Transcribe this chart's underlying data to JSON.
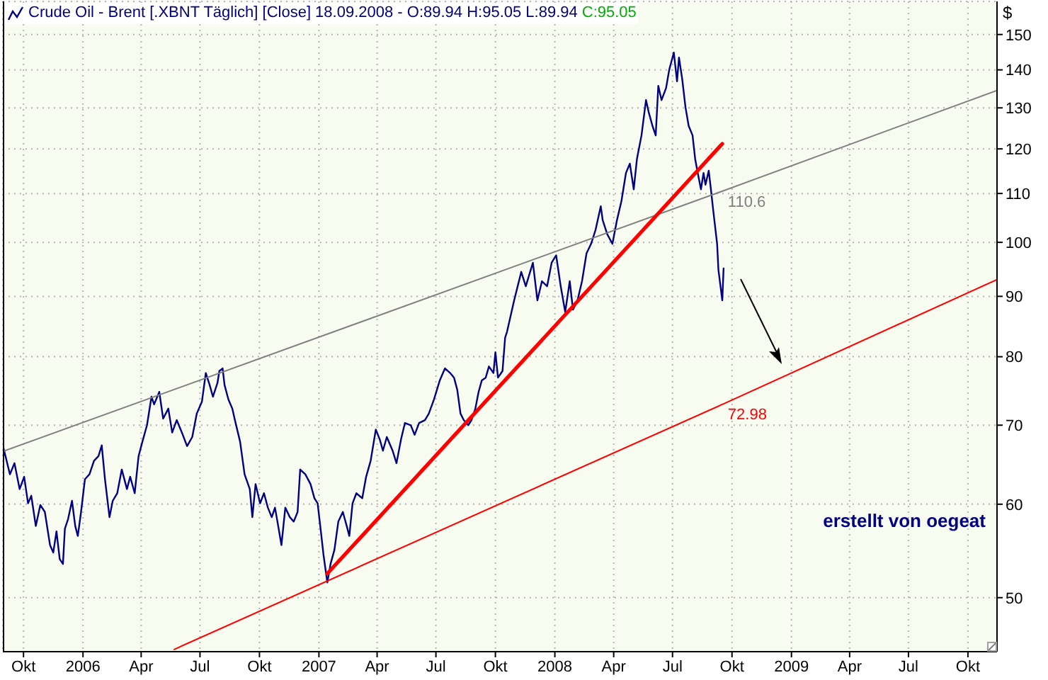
{
  "chart_data": {
    "type": "line",
    "title": "Crude Oil - Brent [.XBNT Täglich] [Close] 18.09.2008 - O:89.94 H:95.05 L:89.94",
    "ylabel": "$",
    "annotations": [
      "C:95.05",
      "erstellt von oegeat"
    ],
    "xlim": [
      "2005-08-30",
      "2009-11-15"
    ],
    "xticks": [
      {
        "value": "2005-10-01",
        "label": "Okt"
      },
      {
        "value": "2006-01-01",
        "label": "2006"
      },
      {
        "value": "2006-04-01",
        "label": "Apr"
      },
      {
        "value": "2006-07-01",
        "label": "Jul"
      },
      {
        "value": "2006-10-01",
        "label": "Okt"
      },
      {
        "value": "2007-01-01",
        "label": "2007"
      },
      {
        "value": "2007-04-01",
        "label": "Apr"
      },
      {
        "value": "2007-07-01",
        "label": "Jul"
      },
      {
        "value": "2007-10-01",
        "label": "Okt"
      },
      {
        "value": "2008-01-01",
        "label": "2008"
      },
      {
        "value": "2008-04-01",
        "label": "Apr"
      },
      {
        "value": "2008-07-01",
        "label": "Jul"
      },
      {
        "value": "2008-10-01",
        "label": "Okt"
      },
      {
        "value": "2009-01-01",
        "label": "2009"
      },
      {
        "value": "2009-04-01",
        "label": "Apr"
      },
      {
        "value": "2009-07-01",
        "label": "Jul"
      },
      {
        "value": "2009-10-01",
        "label": "Okt"
      }
    ],
    "ylim": [
      45,
      160
    ],
    "yticks": [
      50,
      60,
      70,
      80,
      90,
      100,
      110,
      120,
      130,
      140,
      150
    ],
    "log": true,
    "grid": true,
    "series": [
      {
        "color": "#000080",
        "x": [
          "2005-08-30",
          "2005-09-10",
          "2005-09-17",
          "2005-09-25",
          "2005-10-02",
          "2005-10-08",
          "2005-10-13",
          "2005-10-20",
          "2005-10-27",
          "2005-11-03",
          "2005-11-11",
          "2005-11-16",
          "2005-11-21",
          "2005-11-26",
          "2005-12-01",
          "2005-12-04",
          "2005-12-09",
          "2005-12-15",
          "2005-12-20",
          "2005-12-24",
          "2005-12-29",
          "2006-01-04",
          "2006-01-11",
          "2006-01-18",
          "2006-01-25",
          "2006-01-30",
          "2006-02-04",
          "2006-02-11",
          "2006-02-16",
          "2006-02-23",
          "2006-03-02",
          "2006-03-10",
          "2006-03-15",
          "2006-03-22",
          "2006-03-28",
          "2006-04-02",
          "2006-04-10",
          "2006-04-17",
          "2006-04-21",
          "2006-04-29",
          "2006-05-05",
          "2006-05-13",
          "2006-05-19",
          "2006-05-26",
          "2006-06-03",
          "2006-06-11",
          "2006-06-19",
          "2006-06-26",
          "2006-07-04",
          "2006-07-10",
          "2006-07-16",
          "2006-07-21",
          "2006-07-28",
          "2006-07-31",
          "2006-08-05",
          "2006-08-08",
          "2006-08-14",
          "2006-08-20",
          "2006-08-24",
          "2006-09-01",
          "2006-09-08",
          "2006-09-16",
          "2006-09-20",
          "2006-09-25",
          "2006-10-02",
          "2006-10-08",
          "2006-10-14",
          "2006-10-20",
          "2006-10-25",
          "2006-10-30",
          "2006-11-04",
          "2006-11-10",
          "2006-11-17",
          "2006-11-23",
          "2006-11-29",
          "2006-12-03",
          "2006-12-11",
          "2006-12-19",
          "2006-12-25",
          "2006-12-30",
          "2007-01-04",
          "2007-01-08",
          "2007-01-14",
          "2007-01-19",
          "2007-01-25",
          "2007-01-31",
          "2007-02-07",
          "2007-02-13",
          "2007-02-17",
          "2007-02-22",
          "2007-02-28",
          "2007-03-09",
          "2007-03-15",
          "2007-03-22",
          "2007-03-30",
          "2007-04-05",
          "2007-04-10",
          "2007-04-16",
          "2007-04-25",
          "2007-05-01",
          "2007-05-08",
          "2007-05-14",
          "2007-05-23",
          "2007-05-29",
          "2007-06-05",
          "2007-06-14",
          "2007-06-20",
          "2007-06-28",
          "2007-07-07",
          "2007-07-15",
          "2007-07-23",
          "2007-07-29",
          "2007-08-03",
          "2007-08-08",
          "2007-08-13",
          "2007-08-20",
          "2007-08-25",
          "2007-08-31",
          "2007-09-05",
          "2007-09-10",
          "2007-09-16",
          "2007-09-21",
          "2007-09-28",
          "2007-10-01",
          "2007-10-05",
          "2007-10-12",
          "2007-10-16",
          "2007-10-19",
          "2007-10-30",
          "2007-11-10",
          "2007-11-17",
          "2007-11-28",
          "2007-12-05",
          "2007-12-12",
          "2007-12-20",
          "2007-12-27",
          "2008-01-03",
          "2008-01-10",
          "2008-01-17",
          "2008-01-24",
          "2008-01-29",
          "2008-02-05",
          "2008-02-12",
          "2008-02-19",
          "2008-02-26",
          "2008-03-04",
          "2008-03-12",
          "2008-03-15",
          "2008-03-22",
          "2008-03-30",
          "2008-04-06",
          "2008-04-13",
          "2008-04-20",
          "2008-04-26",
          "2008-05-02",
          "2008-05-07",
          "2008-05-14",
          "2008-05-21",
          "2008-05-25",
          "2008-05-31",
          "2008-06-05",
          "2008-06-09",
          "2008-06-14",
          "2008-06-21",
          "2008-06-26",
          "2008-07-03",
          "2008-07-08",
          "2008-07-11",
          "2008-07-16",
          "2008-07-21",
          "2008-07-26",
          "2008-08-01",
          "2008-08-05",
          "2008-08-09",
          "2008-08-14",
          "2008-08-18",
          "2008-08-21",
          "2008-08-26",
          "2008-08-29",
          "2008-09-02",
          "2008-09-08",
          "2008-09-10",
          "2008-09-16",
          "2008-09-18"
        ],
        "values": [
          67.3,
          63.6,
          65.0,
          61.8,
          63.3,
          60.1,
          61.0,
          57.5,
          59.9,
          59.1,
          55.4,
          54.6,
          56.9,
          53.9,
          53.4,
          57.2,
          58.3,
          60.4,
          57.5,
          56.4,
          59.1,
          63.0,
          63.6,
          65.3,
          65.9,
          67.3,
          63.0,
          58.5,
          60.4,
          61.3,
          64.2,
          61.8,
          63.3,
          61.3,
          65.9,
          67.5,
          70.0,
          74.0,
          72.9,
          74.7,
          70.9,
          72.3,
          69.0,
          70.7,
          69.0,
          67.2,
          68.4,
          71.6,
          73.3,
          77.5,
          75.7,
          74.0,
          76.0,
          77.8,
          78.2,
          75.7,
          73.6,
          72.3,
          70.7,
          67.8,
          63.6,
          61.8,
          58.5,
          62.4,
          60.1,
          61.3,
          59.6,
          58.5,
          59.6,
          57.5,
          55.4,
          59.6,
          58.5,
          58.0,
          59.1,
          64.2,
          63.6,
          62.4,
          60.7,
          60.1,
          56.9,
          54.4,
          51.5,
          53.4,
          54.9,
          58.0,
          59.1,
          57.5,
          56.4,
          60.1,
          61.3,
          60.7,
          63.3,
          65.3,
          69.4,
          68.1,
          66.6,
          68.4,
          66.6,
          65.0,
          68.1,
          70.3,
          70.0,
          68.7,
          70.3,
          70.7,
          71.6,
          73.6,
          76.4,
          78.2,
          77.5,
          76.8,
          75.0,
          71.6,
          70.7,
          70.0,
          70.7,
          72.3,
          74.7,
          76.4,
          76.8,
          78.5,
          77.5,
          80.7,
          76.8,
          77.8,
          83.0,
          84.0,
          89.3,
          94.4,
          91.8,
          96.1,
          89.3,
          92.7,
          91.8,
          96.1,
          97.5,
          91.8,
          87.3,
          92.7,
          87.7,
          89.3,
          92.7,
          97.9,
          99.7,
          102.5,
          107.3,
          104.4,
          101.6,
          99.7,
          104.4,
          108.4,
          114.5,
          116.6,
          110.9,
          117.7,
          123.2,
          132.0,
          129.0,
          125.5,
          123.2,
          135.7,
          132.0,
          135.1,
          140.1,
          144.8,
          136.9,
          143.4,
          137.5,
          130.2,
          125.5,
          123.2,
          117.7,
          114.5,
          110.9,
          114.5,
          111.9,
          115.0,
          111.4,
          106.4,
          99.7,
          94.8,
          89.3,
          95.05
        ]
      },
      {
        "type": "line",
        "color": "#808080",
        "x": [
          "2005-08-30",
          "2008-09-18",
          "2009-11-15"
        ],
        "values": [
          66.5,
          110.6,
          134.5
        ],
        "value_labels": [
          null,
          "110.6",
          null
        ]
      },
      {
        "type": "line",
        "color": "#ff0000",
        "x": [
          "2007-01-14",
          "2008-09-16"
        ],
        "values": [
          52.4,
          121.2
        ]
      },
      {
        "type": "line",
        "color": "#ff0000",
        "x": [
          "2006-05-22",
          "2008-09-18",
          "2009-11-15"
        ],
        "values": [
          45.2,
          72.98,
          93.0
        ],
        "value_labels": [
          null,
          "72.98",
          null
        ]
      }
    ]
  }
}
